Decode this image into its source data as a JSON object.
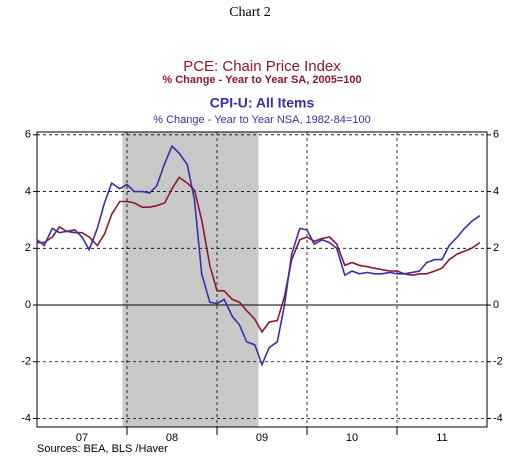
{
  "chart_data": {
    "type": "line",
    "title": "Chart 2",
    "subtitles": [
      {
        "text": "PCE: Chain Price Index",
        "color": "#8b1a2b"
      },
      {
        "text": "% Change - Year to Year     SA, 2005=100",
        "color": "#8b1a2b"
      },
      {
        "text": "CPI-U: All Items",
        "color": "#3b2fa8"
      },
      {
        "text": "% Change - Year to Year     NSA, 1982-84=100",
        "color": "#3b2fa8"
      }
    ],
    "source": "Sources:  BEA, BLS /Haver",
    "x": [
      2007.0,
      2007.08,
      2007.17,
      2007.25,
      2007.33,
      2007.42,
      2007.5,
      2007.58,
      2007.67,
      2007.75,
      2007.83,
      2007.92,
      2008.0,
      2008.08,
      2008.17,
      2008.25,
      2008.33,
      2008.42,
      2008.5,
      2008.58,
      2008.67,
      2008.75,
      2008.83,
      2008.92,
      2009.0,
      2009.08,
      2009.17,
      2009.25,
      2009.33,
      2009.42,
      2009.5,
      2009.58,
      2009.67,
      2009.75,
      2009.83,
      2009.92,
      2010.0,
      2010.08,
      2010.17,
      2010.25,
      2010.33,
      2010.42,
      2010.5,
      2010.58,
      2010.67,
      2010.75,
      2010.83,
      2010.92,
      2011.0,
      2011.08,
      2011.17,
      2011.25,
      2011.33,
      2011.42,
      2011.5,
      2011.58,
      2011.67,
      2011.75,
      2011.83,
      2011.92
    ],
    "series": [
      {
        "name": "PCE: Chain Price Index",
        "color": "#8b1a2b",
        "values": [
          2.2,
          2.2,
          2.4,
          2.75,
          2.6,
          2.55,
          2.55,
          2.4,
          2.1,
          2.5,
          3.2,
          3.65,
          3.65,
          3.6,
          3.45,
          3.45,
          3.5,
          3.6,
          4.1,
          4.5,
          4.3,
          4.05,
          3.0,
          1.4,
          0.5,
          0.5,
          0.2,
          0.1,
          -0.2,
          -0.5,
          -0.95,
          -0.6,
          -0.55,
          0.3,
          1.6,
          2.3,
          2.4,
          2.25,
          2.35,
          2.4,
          2.15,
          1.4,
          1.5,
          1.4,
          1.35,
          1.3,
          1.25,
          1.2,
          1.2,
          1.1,
          1.05,
          1.1,
          1.1,
          1.2,
          1.3,
          1.6,
          1.8,
          1.9,
          2.0,
          2.2
        ]
      },
      {
        "name": "CPI-U: All Items",
        "color": "#3b2fa8",
        "values": [
          2.3,
          2.1,
          2.7,
          2.55,
          2.6,
          2.65,
          2.4,
          1.95,
          2.7,
          3.6,
          4.3,
          4.1,
          4.25,
          4.0,
          4.0,
          3.95,
          4.2,
          5.0,
          5.6,
          5.35,
          4.95,
          3.7,
          1.1,
          0.1,
          0.05,
          0.2,
          -0.4,
          -0.7,
          -1.3,
          -1.4,
          -2.1,
          -1.5,
          -1.3,
          0.0,
          1.8,
          2.7,
          2.65,
          2.15,
          2.3,
          2.2,
          2.0,
          1.05,
          1.2,
          1.1,
          1.15,
          1.1,
          1.1,
          1.15,
          1.1,
          1.1,
          1.15,
          1.2,
          1.5,
          1.6,
          1.6,
          2.1,
          2.4,
          2.7,
          2.95,
          3.15
        ]
      }
    ],
    "xlim": [
      2007,
      2012
    ],
    "xticks": [
      {
        "value": 2007.5,
        "label": "07"
      },
      {
        "value": 2008.5,
        "label": "08"
      },
      {
        "value": 2009.5,
        "label": "09"
      },
      {
        "value": 2010.5,
        "label": "10"
      },
      {
        "value": 2011.5,
        "label": "11"
      }
    ],
    "xgrid": [
      2008,
      2009,
      2010,
      2011
    ],
    "shaded": [
      2007.95,
      2009.46
    ],
    "ylim": [
      -4.3,
      6.1
    ],
    "yticks": [
      -4,
      -2,
      0,
      2,
      4,
      6
    ],
    "grid": true
  }
}
